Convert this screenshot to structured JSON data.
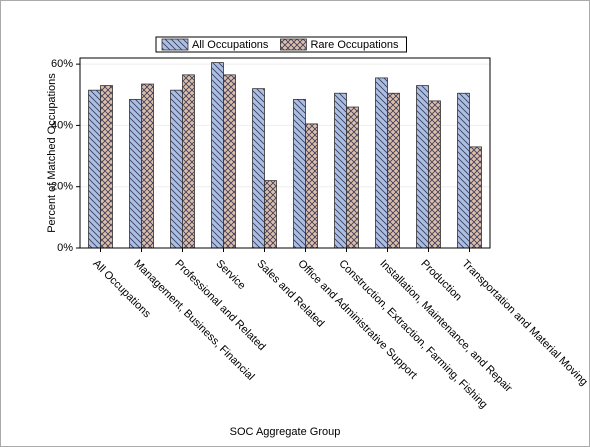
{
  "chart_data": {
    "type": "bar",
    "y_label": "Percent of Matched Occupations",
    "x_label": "SOC Aggregate Group",
    "categories": [
      "All Occupations",
      "Management, Business, Financial",
      "Professional and Related",
      "Service",
      "Sales and Related",
      "Office and Administrative Support",
      "Construction, Extraction, Farming, Fishing",
      "Installation, Maintenance, and Repair",
      "Production",
      "Transportation and Material Moving"
    ],
    "series": [
      {
        "name": "All Occupations",
        "color": "#a9bfe3",
        "values": [
          51.5,
          48.5,
          51.5,
          60.5,
          52,
          48.5,
          50.5,
          55.5,
          53,
          50.5
        ]
      },
      {
        "name": "Rare Occupations",
        "color": "#dcbfa8",
        "values": [
          53,
          53.5,
          56.5,
          56.5,
          22,
          40.5,
          46,
          50.5,
          48,
          33
        ]
      }
    ],
    "ylim": [
      0,
      62
    ],
    "yticks": [
      {
        "value": 0,
        "label": "0%"
      },
      {
        "value": 20,
        "label": "20%"
      },
      {
        "value": 40,
        "label": "40%"
      },
      {
        "value": 60,
        "label": "60%"
      }
    ],
    "legend": "top"
  }
}
